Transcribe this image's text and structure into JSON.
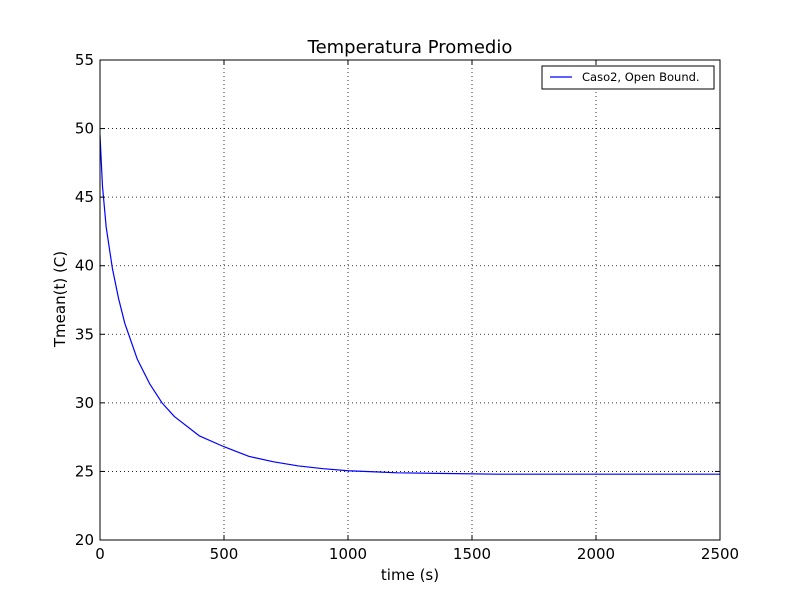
{
  "chart_data": {
    "type": "line",
    "title": "Temperatura Promedio",
    "xlabel": "time (s)",
    "ylabel": "Tmean(t) (C)",
    "xlim": [
      0,
      2500
    ],
    "ylim": [
      20,
      55
    ],
    "xticks": [
      "0",
      "500",
      "1000",
      "1500",
      "2000",
      "2500"
    ],
    "yticks": [
      "20",
      "25",
      "30",
      "35",
      "40",
      "45",
      "50",
      "55"
    ],
    "grid": true,
    "legend_position": "top-right",
    "series": [
      {
        "name": "Caso2, Open Bound.",
        "color": "#0000ff",
        "x": [
          0,
          10,
          25,
          50,
          75,
          100,
          150,
          200,
          250,
          300,
          400,
          500,
          600,
          700,
          800,
          900,
          1000,
          1200,
          1400,
          1600,
          1800,
          2000,
          2200,
          2500
        ],
        "y": [
          49.5,
          45.8,
          42.8,
          39.8,
          37.6,
          35.8,
          33.2,
          31.4,
          30.0,
          29.0,
          27.6,
          26.8,
          26.1,
          25.7,
          25.4,
          25.2,
          25.05,
          24.9,
          24.85,
          24.8,
          24.8,
          24.8,
          24.8,
          24.8
        ]
      }
    ]
  }
}
